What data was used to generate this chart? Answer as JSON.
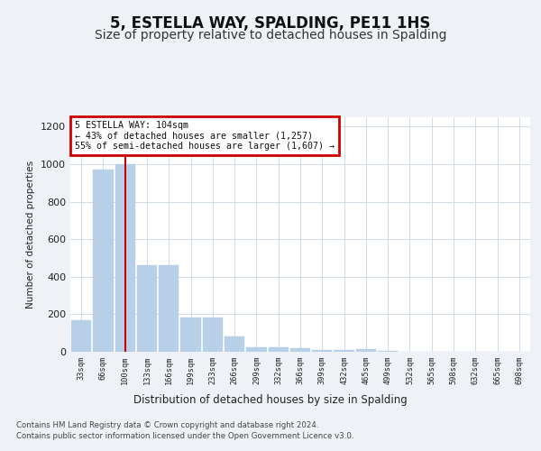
{
  "title": "5, ESTELLA WAY, SPALDING, PE11 1HS",
  "subtitle": "Size of property relative to detached houses in Spalding",
  "xlabel": "Distribution of detached houses by size in Spalding",
  "ylabel": "Number of detached properties",
  "categories": [
    "33sqm",
    "66sqm",
    "100sqm",
    "133sqm",
    "166sqm",
    "199sqm",
    "233sqm",
    "266sqm",
    "299sqm",
    "332sqm",
    "366sqm",
    "399sqm",
    "432sqm",
    "465sqm",
    "499sqm",
    "532sqm",
    "565sqm",
    "598sqm",
    "632sqm",
    "665sqm",
    "698sqm"
  ],
  "values": [
    170,
    970,
    1000,
    460,
    460,
    185,
    185,
    80,
    25,
    25,
    18,
    10,
    10,
    15,
    5,
    0,
    0,
    0,
    0,
    0,
    0
  ],
  "bar_color": "#b8cfe8",
  "red_line_index": 2,
  "red_line_color": "#cc0000",
  "annotation_text": "5 ESTELLA WAY: 104sqm\n← 43% of detached houses are smaller (1,257)\n55% of semi-detached houses are larger (1,607) →",
  "annotation_box_color": "#cc0000",
  "ylim": [
    0,
    1250
  ],
  "yticks": [
    0,
    200,
    400,
    600,
    800,
    1000,
    1200
  ],
  "footer_line1": "Contains HM Land Registry data © Crown copyright and database right 2024.",
  "footer_line2": "Contains public sector information licensed under the Open Government Licence v3.0.",
  "bg_color": "#eef2f7",
  "plot_bg_color": "#ffffff",
  "title_fontsize": 12,
  "subtitle_fontsize": 10,
  "grid_color": "#d0dae6"
}
